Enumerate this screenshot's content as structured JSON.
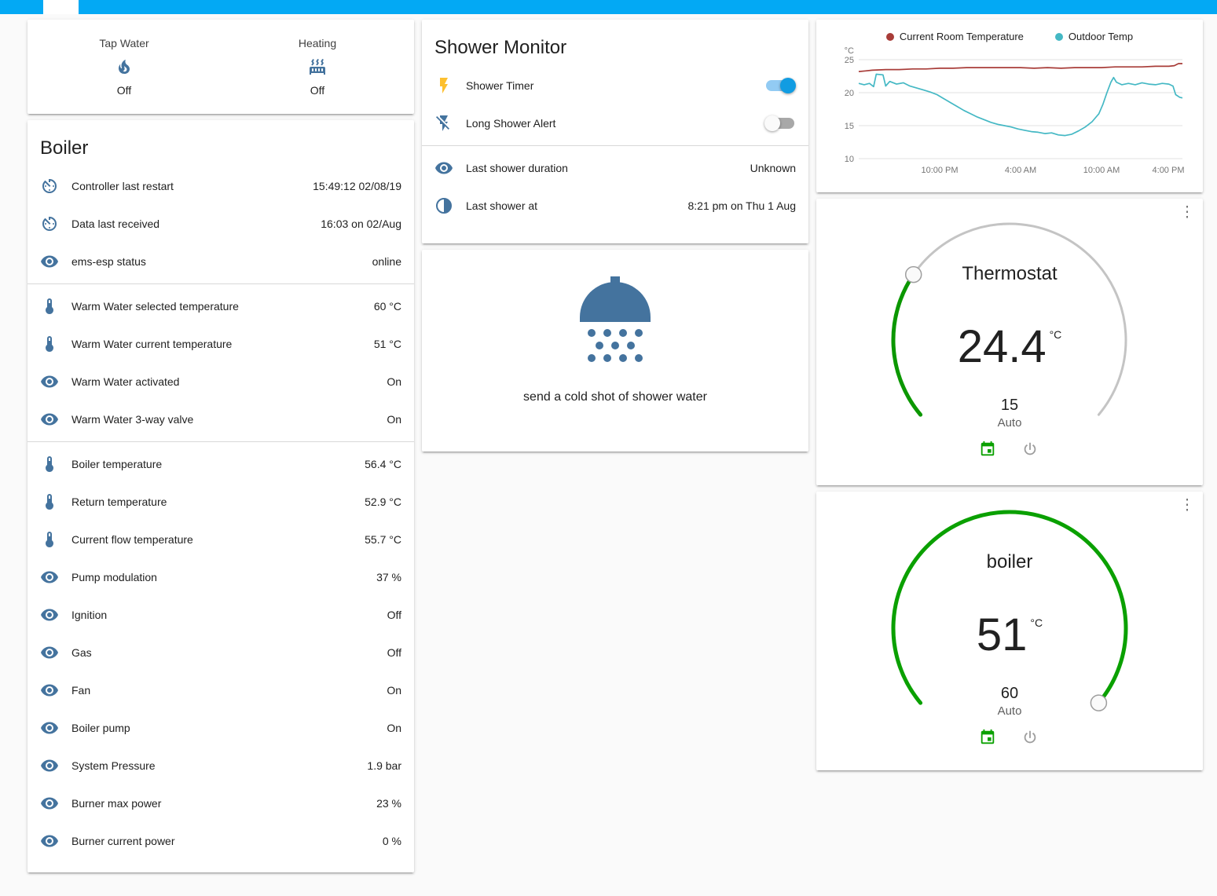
{
  "colors": {
    "accent": "#03a9f4",
    "icon": "#44739e",
    "icon_active": "#fdc02f",
    "toggle_on": "#119ce2",
    "gauge_track": "#c4c4c4",
    "thermostat_arc": "#0b9700",
    "boiler_arc": "#0aa000",
    "power_icon": "#9e9e9e"
  },
  "glyphs": {
    "more_menu": "⋮"
  },
  "glance": {
    "items": [
      {
        "label": "Tap Water",
        "icon": "fire",
        "state": "Off"
      },
      {
        "label": "Heating",
        "icon": "radiator",
        "state": "Off"
      }
    ]
  },
  "boiler": {
    "title": "Boiler",
    "rows": [
      {
        "icon": "timer",
        "name": "Controller last restart",
        "value": "15:49:12 02/08/19",
        "divider_after": false
      },
      {
        "icon": "timer",
        "name": "Data last received",
        "value": "16:03 on 02/Aug",
        "divider_after": false
      },
      {
        "icon": "eye",
        "name": "ems-esp status",
        "value": "online",
        "divider_after": true
      },
      {
        "icon": "thermometer",
        "name": "Warm Water selected temperature",
        "value": "60 °C",
        "divider_after": false
      },
      {
        "icon": "thermometer",
        "name": "Warm Water current temperature",
        "value": "51 °C",
        "divider_after": false
      },
      {
        "icon": "eye",
        "name": "Warm Water activated",
        "value": "On",
        "divider_after": false
      },
      {
        "icon": "eye",
        "name": "Warm Water 3-way valve",
        "value": "On",
        "divider_after": true
      },
      {
        "icon": "thermometer",
        "name": "Boiler temperature",
        "value": "56.4 °C",
        "divider_after": false
      },
      {
        "icon": "thermometer",
        "name": "Return temperature",
        "value": "52.9 °C",
        "divider_after": false
      },
      {
        "icon": "thermometer",
        "name": "Current flow temperature",
        "value": "55.7 °C",
        "divider_after": false
      },
      {
        "icon": "eye",
        "name": "Pump modulation",
        "value": "37 %",
        "divider_after": false
      },
      {
        "icon": "eye",
        "name": "Ignition",
        "value": "Off",
        "divider_after": false
      },
      {
        "icon": "eye",
        "name": "Gas",
        "value": "Off",
        "divider_after": false
      },
      {
        "icon": "eye",
        "name": "Fan",
        "value": "On",
        "divider_after": false
      },
      {
        "icon": "eye",
        "name": "Boiler pump",
        "value": "On",
        "divider_after": false
      },
      {
        "icon": "eye",
        "name": "System Pressure",
        "value": "1.9 bar",
        "divider_after": false
      },
      {
        "icon": "eye",
        "name": "Burner max power",
        "value": "23 %",
        "divider_after": false
      },
      {
        "icon": "eye",
        "name": "Burner current power",
        "value": "0 %",
        "divider_after": false
      }
    ]
  },
  "shower_monitor": {
    "title": "Shower Monitor",
    "switches": [
      {
        "icon": "flash",
        "icon_color": "#fdc02f",
        "name": "Shower Timer",
        "on": true
      },
      {
        "icon": "flash-off",
        "icon_color": "#44739e",
        "name": "Long Shower Alert",
        "on": false
      }
    ],
    "info_rows": [
      {
        "icon": "eye",
        "name": "Last shower duration",
        "value": "Unknown"
      },
      {
        "icon": "circle-half",
        "name": "Last shower at",
        "value": "8:21 pm on Thu 1 Aug"
      }
    ]
  },
  "shower_card": {
    "caption": "send a cold shot of shower water"
  },
  "chart_data": {
    "type": "line",
    "title": "",
    "ylabel": "°C",
    "ylim": [
      10,
      25
    ],
    "yticks": [
      10,
      15,
      20,
      25
    ],
    "xlim": [
      16,
      40
    ],
    "xticks": [
      {
        "t": 22,
        "label": "10:00 PM"
      },
      {
        "t": 28,
        "label": "4:00 AM"
      },
      {
        "t": 34,
        "label": "10:00 AM"
      },
      {
        "t": 40,
        "label": "4:00 PM"
      }
    ],
    "grid": true,
    "legend_position": "top",
    "series": [
      {
        "name": "Current Room Temperature",
        "color": "#a83c38",
        "points": [
          [
            16,
            23.2
          ],
          [
            16.5,
            23.3
          ],
          [
            17,
            23.4
          ],
          [
            18,
            23.5
          ],
          [
            19,
            23.5
          ],
          [
            20,
            23.6
          ],
          [
            21,
            23.6
          ],
          [
            22,
            23.7
          ],
          [
            23,
            23.7
          ],
          [
            24,
            23.8
          ],
          [
            25,
            23.8
          ],
          [
            26,
            23.8
          ],
          [
            27,
            23.8
          ],
          [
            28,
            23.8
          ],
          [
            29,
            23.7
          ],
          [
            30,
            23.8
          ],
          [
            31,
            23.7
          ],
          [
            32,
            23.8
          ],
          [
            33,
            23.8
          ],
          [
            34,
            23.8
          ],
          [
            35,
            23.9
          ],
          [
            36,
            23.9
          ],
          [
            37,
            23.9
          ],
          [
            38,
            24.0
          ],
          [
            39,
            24.0
          ],
          [
            39.4,
            24.1
          ],
          [
            39.7,
            24.4
          ],
          [
            40,
            24.4
          ]
        ]
      },
      {
        "name": "Outdoor Temp",
        "color": "#44b8c4",
        "points": [
          [
            16,
            21.4
          ],
          [
            16.4,
            21.2
          ],
          [
            16.8,
            21.4
          ],
          [
            17.1,
            20.9
          ],
          [
            17.3,
            22.8
          ],
          [
            17.8,
            22.7
          ],
          [
            18,
            21.0
          ],
          [
            18.3,
            21.7
          ],
          [
            18.8,
            21.3
          ],
          [
            19.3,
            21.5
          ],
          [
            19.8,
            21.0
          ],
          [
            20.3,
            20.7
          ],
          [
            20.8,
            20.4
          ],
          [
            21.3,
            20.1
          ],
          [
            21.8,
            19.7
          ],
          [
            22.3,
            19.1
          ],
          [
            22.8,
            18.5
          ],
          [
            23.3,
            17.9
          ],
          [
            23.8,
            17.3
          ],
          [
            24.3,
            16.8
          ],
          [
            24.8,
            16.3
          ],
          [
            25.3,
            15.9
          ],
          [
            25.8,
            15.5
          ],
          [
            26.3,
            15.2
          ],
          [
            26.8,
            15.0
          ],
          [
            27.3,
            14.8
          ],
          [
            27.8,
            14.5
          ],
          [
            28.3,
            14.3
          ],
          [
            28.8,
            14.1
          ],
          [
            29.3,
            14.0
          ],
          [
            29.8,
            13.8
          ],
          [
            30.3,
            13.9
          ],
          [
            30.8,
            13.6
          ],
          [
            31.3,
            13.5
          ],
          [
            31.8,
            13.7
          ],
          [
            32.3,
            14.2
          ],
          [
            32.8,
            14.8
          ],
          [
            33.3,
            15.6
          ],
          [
            33.8,
            16.8
          ],
          [
            34.1,
            18.2
          ],
          [
            34.4,
            20.0
          ],
          [
            34.7,
            21.6
          ],
          [
            34.9,
            22.3
          ],
          [
            35.1,
            21.6
          ],
          [
            35.5,
            21.2
          ],
          [
            36,
            21.4
          ],
          [
            36.5,
            21.2
          ],
          [
            37,
            21.5
          ],
          [
            37.5,
            21.3
          ],
          [
            38,
            21.2
          ],
          [
            38.5,
            21.4
          ],
          [
            39,
            21.3
          ],
          [
            39.3,
            21.0
          ],
          [
            39.5,
            19.7
          ],
          [
            39.8,
            19.3
          ],
          [
            40,
            19.2
          ]
        ]
      }
    ]
  },
  "thermostat": {
    "title": "Thermostat",
    "value": "24.4",
    "unit": "°C",
    "target": "15",
    "mode": "Auto",
    "min": 7,
    "max": 35,
    "target_num": 15,
    "arc_start": 230,
    "arc_sweep": 260
  },
  "boiler_gauge": {
    "title": "boiler",
    "value": "51",
    "unit": "°C",
    "target": "60",
    "mode": "Auto",
    "min": 0,
    "max": 60,
    "target_num": 60,
    "arc_start": 230,
    "arc_sweep": 260
  }
}
